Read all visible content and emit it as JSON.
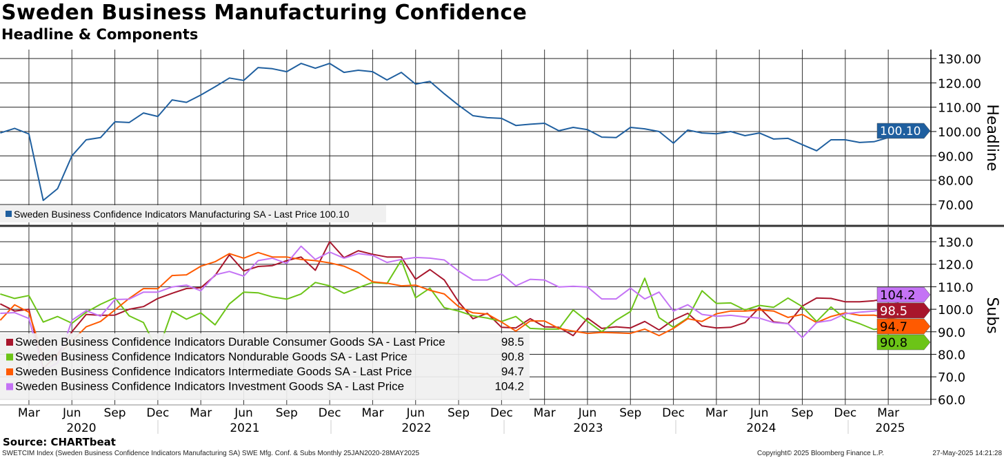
{
  "title": "Sweden Business Manufacturing Confidence",
  "subtitle": "Headline & Components",
  "source": "Source: CHARTbeat",
  "footer": {
    "left": "SWETCIM Index (Sweden Business Confidence Indicators Manufacturing SA) SWE Mfg. Conf. & Subs  Monthly 25JAN2020-28MAY2025",
    "center": "Copyright© 2025 Bloomberg Finance L.P.",
    "right": "27-May-2025 14:21:28"
  },
  "x_axis": {
    "start": "2020-01",
    "end": "2025-05",
    "frequency": "monthly",
    "month_labels": [
      "Mar",
      "Jun",
      "Sep",
      "Dec",
      "Mar",
      "Jun",
      "Sep",
      "Dec",
      "Mar",
      "Jun",
      "Sep",
      "Dec",
      "Mar",
      "Jun",
      "Sep",
      "Dec",
      "Mar",
      "Jun",
      "Sep",
      "Dec",
      "Mar"
    ],
    "year_labels": [
      "2020",
      "2021",
      "2022",
      "2023",
      "2024",
      "2025"
    ]
  },
  "chart_data": [
    {
      "type": "line",
      "title": "Headline",
      "ylabel": "Headline",
      "ylim": [
        62,
        133
      ],
      "yticks": [
        130,
        120,
        110,
        100,
        90,
        80,
        70
      ],
      "ytick_labels": [
        "130.00",
        "120.00",
        "110.00",
        "100.00",
        "90.00",
        "80.00",
        "70.00"
      ],
      "grid": true,
      "legend_placement": "bottom-left",
      "series": [
        {
          "name": "Sweden Business Confidence Indicators Manufacturing SA - Last Price 100.10",
          "color": "#1f5f9f",
          "last_label": "100.10",
          "values": [
            99.4,
            101.3,
            99,
            71.7,
            76.5,
            90,
            96.6,
            97.5,
            104,
            103.7,
            107.6,
            106.2,
            113,
            112,
            115,
            118.4,
            122,
            121,
            126.3,
            125.8,
            124.6,
            128,
            126,
            128,
            124.3,
            125.2,
            124.6,
            121.2,
            124.3,
            119.5,
            120.6,
            115.5,
            110.8,
            106.5,
            105.7,
            105.4,
            102.5,
            103,
            103.4,
            100.3,
            101.7,
            100.8,
            97.7,
            97.5,
            101.7,
            101.1,
            100,
            95.2,
            100.6,
            99.4,
            99.1,
            100,
            98.3,
            99.4,
            96.9,
            97.2,
            94.6,
            92.1,
            96.6,
            96.6,
            95.5,
            95.8,
            97.5,
            100.6,
            100.1
          ]
        }
      ]
    },
    {
      "type": "line",
      "title": "Subs",
      "ylabel": "Subs",
      "ylim": [
        57,
        133
      ],
      "yticks": [
        130,
        120,
        110,
        100,
        90,
        80,
        70,
        60
      ],
      "ytick_labels": [
        "130.0",
        "120.0",
        "110.0",
        "100.0",
        "90.0",
        "80.0",
        "70.0",
        "60.0"
      ],
      "grid": true,
      "legend_placement": "bottom-left",
      "series": [
        {
          "name": "Sweden Business Confidence Indicators Durable Consumer Goods SA - Last Price",
          "color": "#a8162c",
          "text_color": "#ffffff",
          "last_label": "98.5",
          "values": [
            102.4,
            99.2,
            100,
            73.7,
            80,
            90,
            97.7,
            97.3,
            97.4,
            100,
            101.2,
            104.8,
            107.1,
            109.2,
            109.6,
            115,
            124.2,
            117,
            119,
            119.4,
            121.6,
            123.2,
            117.3,
            130,
            122.9,
            126,
            124.4,
            123.2,
            123.2,
            113.3,
            117.6,
            113,
            103.3,
            95.8,
            98.2,
            92,
            91.7,
            95.8,
            92.2,
            92,
            88.3,
            96.1,
            91.5,
            92.2,
            91.7,
            94.6,
            90.8,
            95.3,
            98.2,
            92.6,
            91.7,
            92,
            94.1,
            100.7,
            94.4,
            93.6,
            101.4,
            105,
            104.8,
            103.3,
            103.3,
            103.8,
            105,
            101.7,
            98.5
          ]
        },
        {
          "name": "Sweden Business Confidence Indicators Nondurable Goods SA - Last Price",
          "color": "#6cc417",
          "text_color": "#000000",
          "last_label": "90.8",
          "values": [
            106.8,
            104.8,
            106.1,
            94.3,
            96.8,
            93.8,
            98.7,
            102.2,
            105.1,
            97.1,
            94.1,
            81.3,
            99.2,
            95.6,
            98.4,
            93.1,
            102.4,
            107.6,
            107.3,
            105.5,
            104.5,
            106.8,
            111.9,
            110.4,
            107.1,
            109.6,
            111.9,
            111.4,
            121.8,
            105.1,
            109.4,
            100.7,
            99.2,
            97.1,
            96.1,
            94.6,
            96.8,
            91.5,
            91.2,
            91.2,
            99.7,
            94.6,
            90,
            95.1,
            99,
            113.8,
            96.3,
            92,
            96.1,
            108.2,
            102.6,
            102.8,
            99.7,
            101.7,
            100.9,
            105,
            101.2,
            94.6,
            101,
            95.8,
            93.6,
            91,
            92.2,
            91.2,
            90.8
          ]
        },
        {
          "name": "Sweden Business Confidence Indicators Intermediate Goods SA - Last Price",
          "color": "#ff5a00",
          "text_color": "#000000",
          "last_label": "94.7",
          "values": [
            95.1,
            102,
            98.7,
            78.8,
            79.5,
            85.9,
            92.2,
            94.6,
            99.7,
            104.8,
            109.2,
            109.1,
            115,
            115.3,
            119.1,
            121.1,
            124.7,
            122.7,
            125.2,
            123.2,
            123.2,
            122.1,
            121.6,
            120.6,
            119.1,
            116.3,
            112.2,
            111.6,
            110.4,
            110.7,
            108.4,
            106.8,
            101.2,
            98.4,
            97.9,
            94.3,
            90.3,
            94.8,
            94.8,
            91.5,
            90.3,
            89.3,
            89.7,
            89.5,
            89.3,
            91.2,
            88.3,
            91.5,
            95.8,
            94.6,
            98,
            99.2,
            99.2,
            99.7,
            99.2,
            96.4,
            97.7,
            94.1,
            96.8,
            98.4,
            97.3,
            97.4,
            96.1,
            95.1,
            94.7
          ]
        },
        {
          "name": "Sweden Business Confidence Indicators Investment Goods SA - Last Price",
          "color": "#c473f5",
          "text_color": "#000000",
          "last_label": "104.2",
          "values": [
            98.2,
            98.5,
            95.9,
            72.7,
            76.2,
            95.1,
            99.4,
            96.9,
            104.3,
            104.5,
            107.6,
            107.6,
            109.9,
            110.7,
            108.2,
            115.3,
            116.8,
            114.7,
            121.6,
            122.7,
            120.4,
            128,
            122.1,
            125.4,
            122.7,
            124.7,
            123.9,
            120.8,
            122.1,
            123,
            122.7,
            121.9,
            117,
            113,
            113,
            115.7,
            110.4,
            113.3,
            113,
            109.9,
            110.2,
            109.9,
            104.6,
            104.6,
            109.4,
            104.6,
            107.6,
            99.2,
            102,
            97.7,
            96.9,
            97.3,
            96.6,
            96.1,
            94.1,
            93.6,
            87.4,
            94.1,
            95.1,
            98,
            98.7,
            99.2,
            100.2,
            105.3,
            104.2
          ]
        }
      ]
    }
  ]
}
